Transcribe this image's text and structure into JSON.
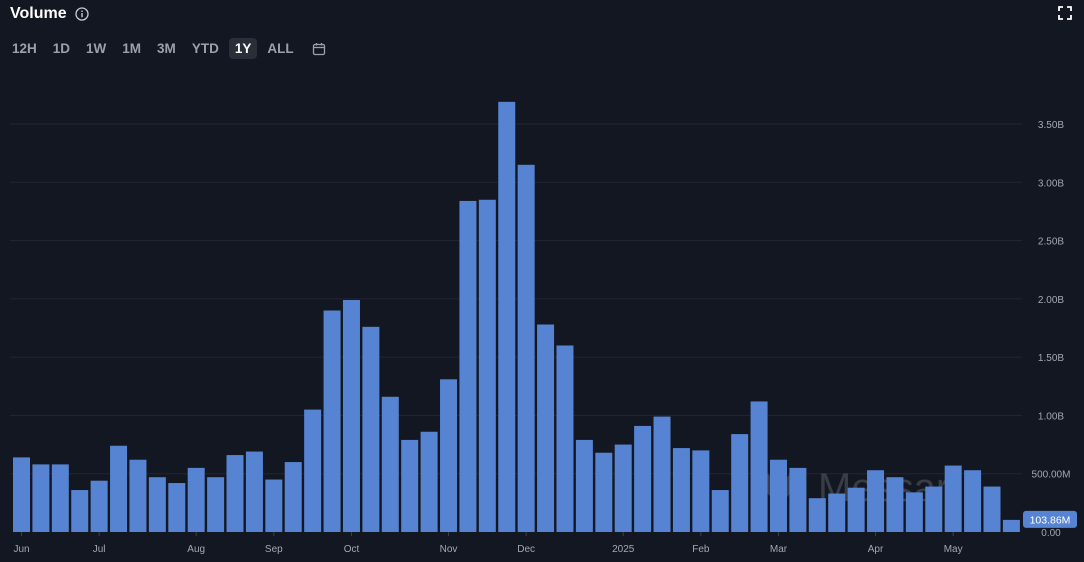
{
  "header": {
    "title": "Volume",
    "info_icon": "info-icon",
    "fullscreen_icon": "fullscreen-icon"
  },
  "ranges": {
    "buttons": [
      "12H",
      "1D",
      "1W",
      "1M",
      "3M",
      "YTD",
      "1Y",
      "ALL"
    ],
    "active": "1Y",
    "calendar_icon": "calendar-icon"
  },
  "colors": {
    "bar": "#5683d2",
    "background": "#131722",
    "grid": "#232733",
    "label_bg": "#5683d2"
  },
  "watermark": "Messari",
  "chart_data": {
    "type": "bar",
    "x_tick_labels": [
      "Jun",
      "Jul",
      "Aug",
      "Sep",
      "Oct",
      "Nov",
      "Dec",
      "2025",
      "Feb",
      "Mar",
      "Apr",
      "May"
    ],
    "x_tick_bar_index": [
      0,
      4,
      9,
      13,
      17,
      22,
      26,
      31,
      35,
      39,
      44,
      48
    ],
    "y_ticks": [
      "0.00",
      "500.00M",
      "1.00B",
      "1.50B",
      "2.00B",
      "2.50B",
      "3.00B",
      "3.50B"
    ],
    "y_tick_values": [
      0,
      500000000,
      1000000000,
      1500000000,
      2000000000,
      2500000000,
      3000000000,
      3500000000
    ],
    "ylim": [
      0,
      3900000000
    ],
    "grid": true,
    "values": [
      640000000,
      580000000,
      580000000,
      360000000,
      440000000,
      740000000,
      620000000,
      470000000,
      420000000,
      550000000,
      470000000,
      660000000,
      690000000,
      450000000,
      600000000,
      1050000000,
      1900000000,
      1990000000,
      1760000000,
      1160000000,
      790000000,
      860000000,
      1310000000,
      2840000000,
      2850000000,
      3690000000,
      3150000000,
      1780000000,
      1600000000,
      790000000,
      680000000,
      750000000,
      910000000,
      990000000,
      720000000,
      700000000,
      360000000,
      840000000,
      1120000000,
      620000000,
      550000000,
      290000000,
      330000000,
      380000000,
      530000000,
      470000000,
      340000000,
      390000000,
      570000000,
      530000000,
      390000000,
      103860000
    ],
    "current_value_label": "103.86M"
  }
}
